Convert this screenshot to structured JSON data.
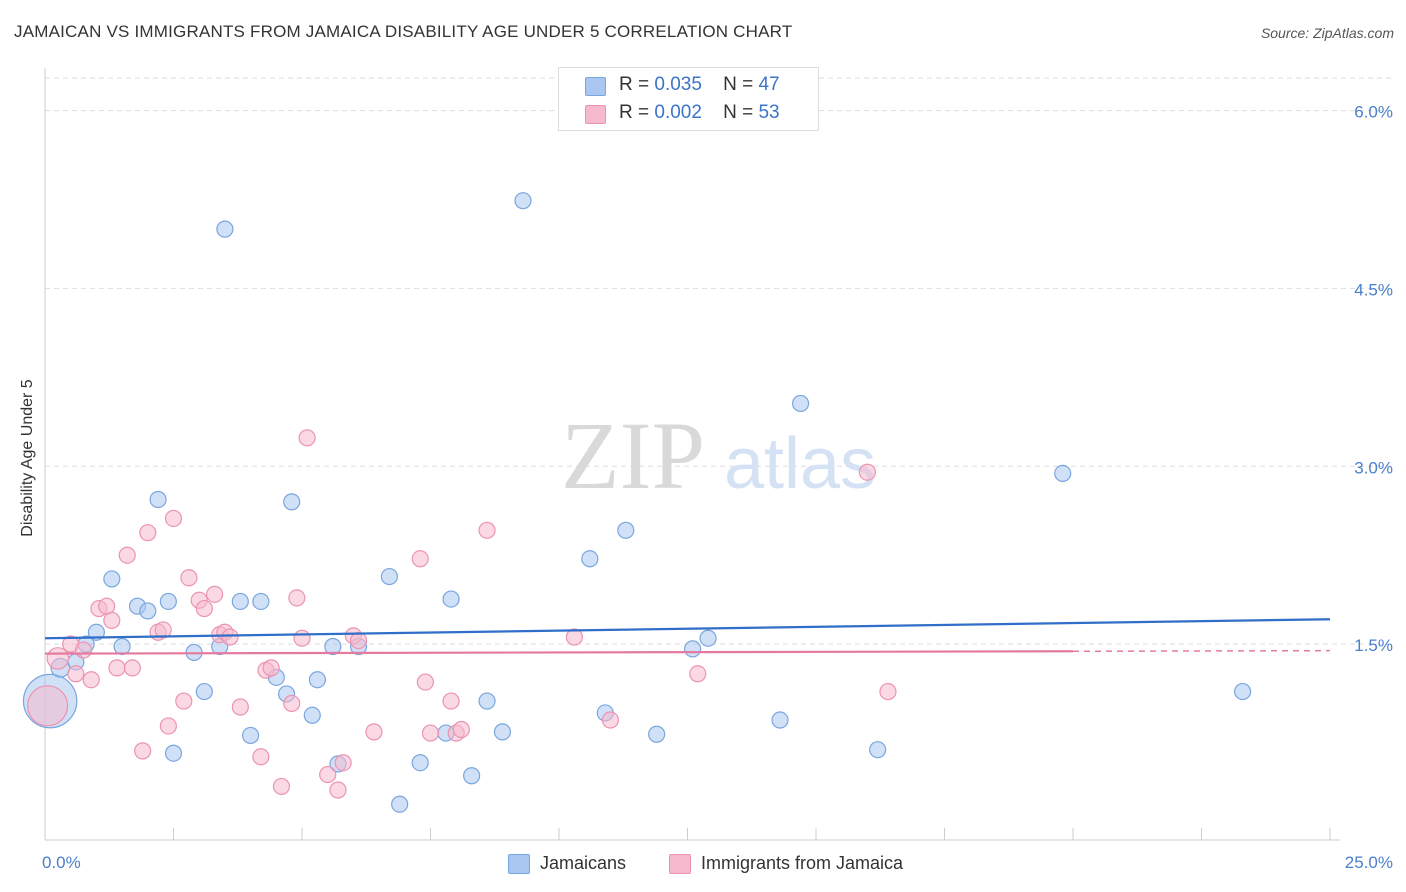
{
  "title": "JAMAICAN VS IMMIGRANTS FROM JAMAICA DISABILITY AGE UNDER 5 CORRELATION CHART",
  "source": "Source: ZipAtlas.com",
  "watermark": {
    "zip": "ZIP",
    "atlas": "atlas"
  },
  "legend": {
    "rows": [
      {
        "r_label": "R =",
        "r_value": "0.035",
        "n_label": "N =",
        "n_value": "47"
      },
      {
        "r_label": "R =",
        "r_value": "0.002",
        "n_label": "N =",
        "n_value": "53"
      }
    ]
  },
  "colors": {
    "blue_fill": "#a9c7f0",
    "blue_stroke": "#7aa6df",
    "blue_line": "#2f6fc9",
    "pink_fill": "#f6b9cd",
    "pink_stroke": "#ec93b1",
    "pink_line": "#e57aa0",
    "axis_text": "#4a7fcc",
    "grid": "#dddddd"
  },
  "chart_data": {
    "type": "scatter",
    "title": "JAMAICAN VS IMMIGRANTS FROM JAMAICA DISABILITY AGE UNDER 5 CORRELATION CHART",
    "xlabel": "",
    "ylabel": "Disability Age Under 5",
    "xlim": [
      0,
      25
    ],
    "ylim": [
      0,
      6.3
    ],
    "x_tick_labels": [
      "0.0%",
      "25.0%"
    ],
    "y_ticks": [
      1.5,
      3.0,
      4.5,
      6.0
    ],
    "y_tick_labels": [
      "1.5%",
      "3.0%",
      "4.5%",
      "6.0%"
    ],
    "grid": true,
    "legend_position": "bottom-center",
    "series": [
      {
        "name": "Jamaicans",
        "color": "#a9c7f0",
        "trend": {
          "x": [
            0,
            25
          ],
          "y": [
            1.55,
            1.71
          ]
        },
        "points": [
          [
            0.1,
            1.02,
            40
          ],
          [
            0.3,
            1.3,
            14
          ],
          [
            0.6,
            1.35,
            12
          ],
          [
            0.8,
            1.5,
            12
          ],
          [
            1.0,
            1.6,
            12
          ],
          [
            1.3,
            2.05,
            12
          ],
          [
            1.5,
            1.48,
            12
          ],
          [
            1.8,
            1.82,
            12
          ],
          [
            2.0,
            1.78,
            12
          ],
          [
            2.2,
            2.72,
            12
          ],
          [
            2.4,
            1.86,
            12
          ],
          [
            2.5,
            0.58,
            12
          ],
          [
            2.9,
            1.43,
            12
          ],
          [
            3.1,
            1.1,
            12
          ],
          [
            3.4,
            1.48,
            12
          ],
          [
            3.5,
            5.0,
            12
          ],
          [
            3.8,
            1.86,
            12
          ],
          [
            4.0,
            0.73,
            12
          ],
          [
            4.2,
            1.86,
            12
          ],
          [
            4.5,
            1.22,
            12
          ],
          [
            4.7,
            1.08,
            12
          ],
          [
            4.8,
            2.7,
            12
          ],
          [
            5.2,
            0.9,
            12
          ],
          [
            5.3,
            1.2,
            12
          ],
          [
            5.6,
            1.48,
            12
          ],
          [
            5.7,
            0.49,
            12
          ],
          [
            6.1,
            1.48,
            12
          ],
          [
            6.7,
            2.07,
            12
          ],
          [
            6.9,
            0.15,
            12
          ],
          [
            7.3,
            0.5,
            12
          ],
          [
            7.8,
            0.75,
            12
          ],
          [
            7.9,
            1.88,
            12
          ],
          [
            8.3,
            0.39,
            12
          ],
          [
            8.6,
            1.02,
            12
          ],
          [
            8.9,
            0.76,
            12
          ],
          [
            9.3,
            5.24,
            12
          ],
          [
            10.6,
            2.22,
            12
          ],
          [
            10.9,
            0.92,
            12
          ],
          [
            11.3,
            2.46,
            12
          ],
          [
            11.9,
            0.74,
            12
          ],
          [
            12.6,
            1.46,
            12
          ],
          [
            12.9,
            1.55,
            12
          ],
          [
            14.3,
            0.86,
            12
          ],
          [
            14.7,
            3.53,
            12
          ],
          [
            16.2,
            0.61,
            12
          ],
          [
            19.8,
            2.94,
            12
          ],
          [
            23.3,
            1.1,
            12
          ]
        ]
      },
      {
        "name": "Immigrants from Jamaica",
        "color": "#f6b9cd",
        "trend": {
          "x": [
            0,
            20
          ],
          "y": [
            1.42,
            1.44
          ],
          "dashed_to": 25
        },
        "points": [
          [
            0.05,
            0.98,
            30
          ],
          [
            0.25,
            1.38,
            16
          ],
          [
            0.5,
            1.5,
            12
          ],
          [
            0.6,
            1.25,
            12
          ],
          [
            0.75,
            1.45,
            12
          ],
          [
            0.9,
            1.2,
            12
          ],
          [
            1.05,
            1.8,
            12
          ],
          [
            1.2,
            1.82,
            12
          ],
          [
            1.3,
            1.7,
            12
          ],
          [
            1.4,
            1.3,
            12
          ],
          [
            1.6,
            2.25,
            12
          ],
          [
            1.7,
            1.3,
            12
          ],
          [
            1.9,
            0.6,
            12
          ],
          [
            2.0,
            2.44,
            12
          ],
          [
            2.2,
            1.6,
            12
          ],
          [
            2.3,
            1.62,
            12
          ],
          [
            2.4,
            0.81,
            12
          ],
          [
            2.5,
            2.56,
            12
          ],
          [
            2.7,
            1.02,
            12
          ],
          [
            2.8,
            2.06,
            12
          ],
          [
            3.0,
            1.87,
            12
          ],
          [
            3.1,
            1.8,
            12
          ],
          [
            3.3,
            1.92,
            12
          ],
          [
            3.4,
            1.58,
            12
          ],
          [
            3.5,
            1.6,
            12
          ],
          [
            3.6,
            1.56,
            12
          ],
          [
            3.8,
            0.97,
            12
          ],
          [
            4.2,
            0.55,
            12
          ],
          [
            4.3,
            1.28,
            12
          ],
          [
            4.4,
            1.3,
            12
          ],
          [
            4.6,
            0.3,
            12
          ],
          [
            4.8,
            1.0,
            12
          ],
          [
            4.9,
            1.89,
            12
          ],
          [
            5.0,
            1.55,
            12
          ],
          [
            5.1,
            3.24,
            12
          ],
          [
            5.5,
            0.4,
            12
          ],
          [
            5.7,
            0.27,
            12
          ],
          [
            5.8,
            0.5,
            12
          ],
          [
            6.0,
            1.57,
            12
          ],
          [
            6.1,
            1.53,
            12
          ],
          [
            6.4,
            0.76,
            12
          ],
          [
            7.3,
            2.22,
            12
          ],
          [
            7.4,
            1.18,
            12
          ],
          [
            7.5,
            0.75,
            12
          ],
          [
            7.9,
            1.02,
            12
          ],
          [
            8.0,
            0.75,
            12
          ],
          [
            8.6,
            2.46,
            12
          ],
          [
            10.3,
            1.56,
            12
          ],
          [
            11.0,
            0.86,
            12
          ],
          [
            12.7,
            1.25,
            12
          ],
          [
            16.0,
            2.95,
            12
          ],
          [
            16.4,
            1.1,
            12
          ],
          [
            8.1,
            0.78,
            12
          ]
        ]
      }
    ]
  }
}
